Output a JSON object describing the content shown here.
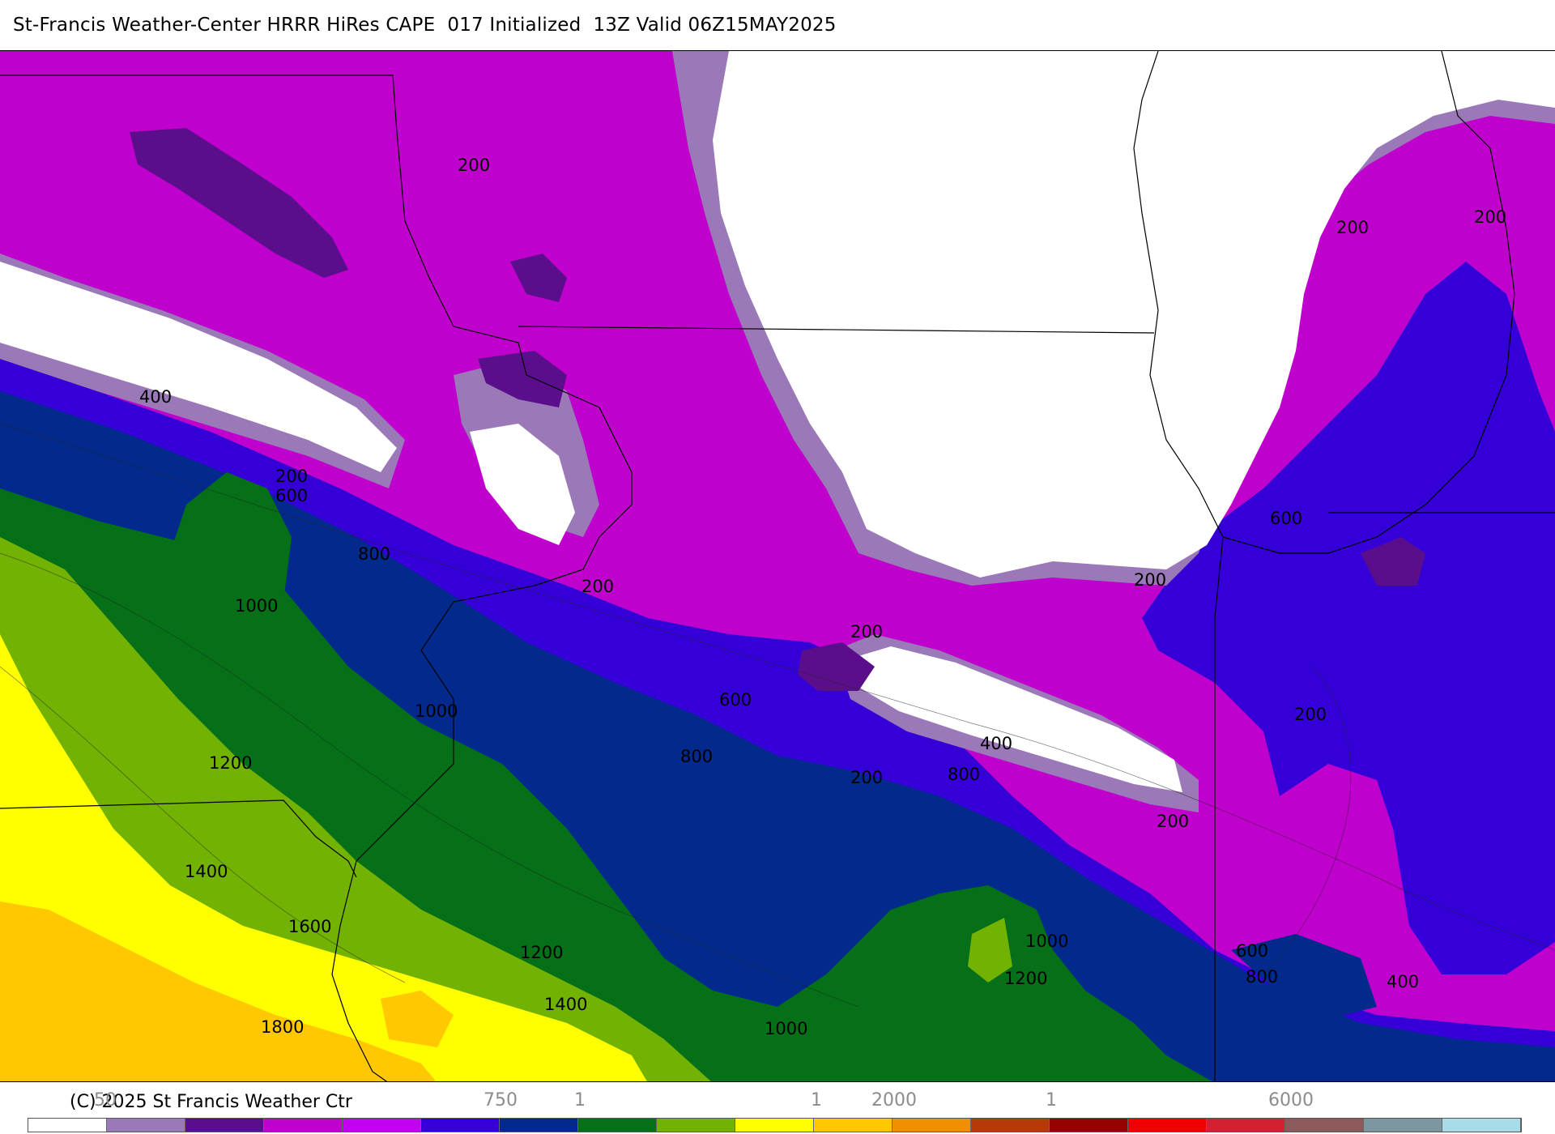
{
  "title": "St-Francis Weather-Center HRRR HiRes CAPE  017 Initialized  13Z Valid 06Z15MAY2025",
  "copyright": "(C) 2025 St Francis Weather Ctr",
  "colors": {
    "white": "#ffffff",
    "lavender": "#9b78b8",
    "deep_purple": "#5b0e8c",
    "magenta": "#c000cc",
    "violet": "#c400f2",
    "blue_violet": "#3500d8",
    "navy": "#022a8c",
    "dark_green": "#067018",
    "green": "#72b202",
    "yellow": "#ffff00",
    "gold": "#ffc800",
    "orange": "#f09000",
    "rust": "#b83808",
    "dark_red": "#960000",
    "red": "#f00000",
    "crimson": "#d42030",
    "mauve": "#8c5a5a",
    "slate": "#7d97a0",
    "light_cyan": "#a8dce8"
  },
  "legend": {
    "tick_labels": [
      "50",
      "750",
      "1",
      "1",
      "2000",
      "1",
      "6000"
    ],
    "swatch_colors": [
      "#ffffff",
      "#9b78b8",
      "#5b0e8c",
      "#c000cc",
      "#c400f2",
      "#3500d8",
      "#022a8c",
      "#067018",
      "#72b202",
      "#ffff00",
      "#ffc800",
      "#f09000",
      "#b83808",
      "#960000",
      "#f00000",
      "#d42030",
      "#8c5a5a",
      "#7d97a0",
      "#a8dce8"
    ]
  },
  "contour_labels": [
    "200",
    "200",
    "200",
    "200",
    "400",
    "200",
    "600",
    "800",
    "1000",
    "200",
    "200",
    "200",
    "600",
    "200",
    "1000",
    "600",
    "800",
    "400",
    "800",
    "200",
    "1200",
    "1400",
    "1600",
    "1200",
    "1400",
    "1000",
    "1000",
    "1200",
    "600",
    "800",
    "400",
    "1800"
  ]
}
